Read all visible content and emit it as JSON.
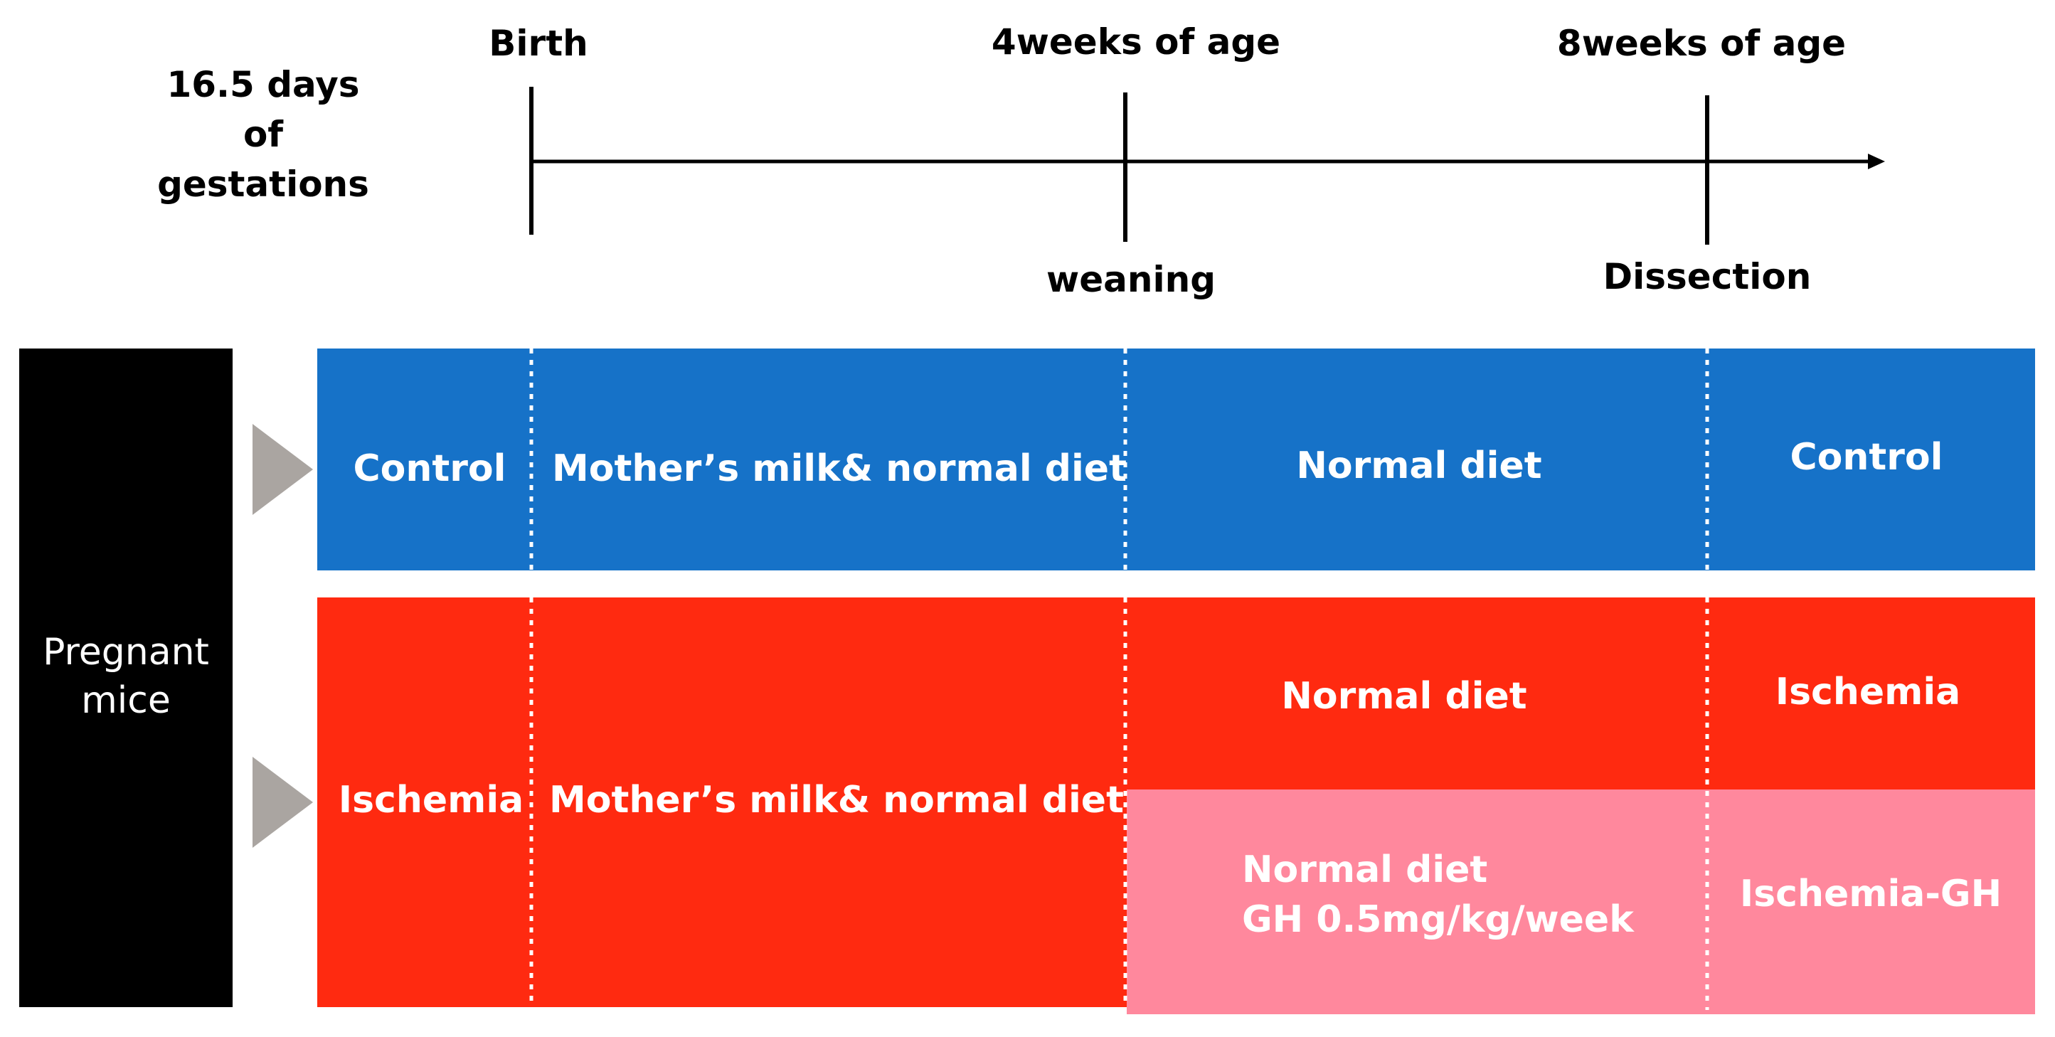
{
  "timeline": {
    "gestation": [
      "16.5 days",
      "of",
      "gestations"
    ],
    "birth": "Birth",
    "week4": "4weeks of age",
    "week8": "8weeks of age",
    "weaning": "weaning",
    "dissection": "Dissection"
  },
  "source": {
    "label_line1": "Pregnant",
    "label_line2": "mice"
  },
  "control_row": {
    "group": "Control",
    "phase1": "Mother’s milk& normal diet",
    "phase2": "Normal diet",
    "outcome": "Control"
  },
  "ischemia_row": {
    "group": "Ischemia",
    "phase1": "Mother’s milk& normal diet",
    "phase2_upper": "Normal diet",
    "outcome_upper": "Ischemia",
    "phase2_lower_line1": "Normal diet",
    "phase2_lower_line2": "GH 0.5mg/kg/week",
    "outcome_lower": "Ischemia-GH"
  },
  "colors": {
    "control": "#1672c8",
    "ischemia": "#ff2a10",
    "gh": "#ff889d",
    "source": "#000000",
    "arrow": "#aaa5a1"
  }
}
